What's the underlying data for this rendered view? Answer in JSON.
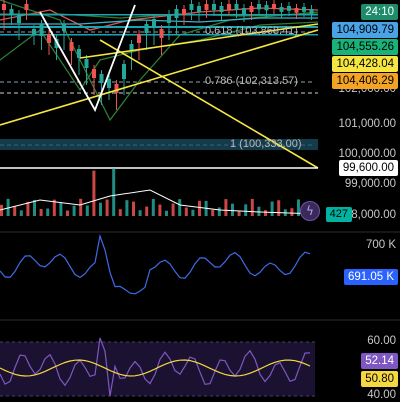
{
  "chart_data": [
    {
      "type": "candlestick",
      "price_labels": [
        {
          "text": "24:10",
          "bg": "#1e8c6b",
          "fg": "#ffffff"
        },
        {
          "text": "104,909.79",
          "bg": "#4aa3e6",
          "fg": "#000000"
        },
        {
          "text": "104,555.26",
          "bg": "#19b37a",
          "fg": "#000000"
        },
        {
          "text": "104,428.04",
          "bg": "#f5e642",
          "fg": "#000000"
        },
        {
          "text": "104,406.29",
          "bg": "#f5a323",
          "fg": "#000000"
        },
        {
          "text": "99,600.00",
          "bg": "#ffffff",
          "fg": "#000000"
        }
      ],
      "y_ticks": [
        "102,000.00",
        "101,000.00",
        "100,000.00",
        "99,000.00",
        "98,000.00"
      ],
      "fib_levels": [
        {
          "label": "0.618 (103,868.41)",
          "value": 103868.41
        },
        {
          "label": "0.786 (102,313.57)",
          "value": 102313.57
        },
        {
          "label": "1 (100,333.00)",
          "value": 100333.0
        }
      ],
      "horizontal_level": 99600.0,
      "volume": {
        "label": "427",
        "color": "#00b3a1"
      },
      "colors": {
        "up": "#26a69a",
        "down": "#ef5350",
        "trendline": "#f5e642",
        "fib": "#6fa8dc"
      }
    },
    {
      "type": "line",
      "title": "",
      "y_ticks": [
        "700 K"
      ],
      "last_value": {
        "text": "691.05 K",
        "bg": "#2962ff",
        "fg": "#ffffff"
      },
      "colors": {
        "line": "#3f6be8"
      }
    },
    {
      "type": "line",
      "y_ticks": [
        "60.00",
        "40.00"
      ],
      "series": [
        {
          "last_value": "52.14",
          "color": "#7e57c2"
        },
        {
          "last_value": "50.80",
          "color": "#f5d742"
        }
      ],
      "band": [
        40,
        60
      ]
    }
  ]
}
